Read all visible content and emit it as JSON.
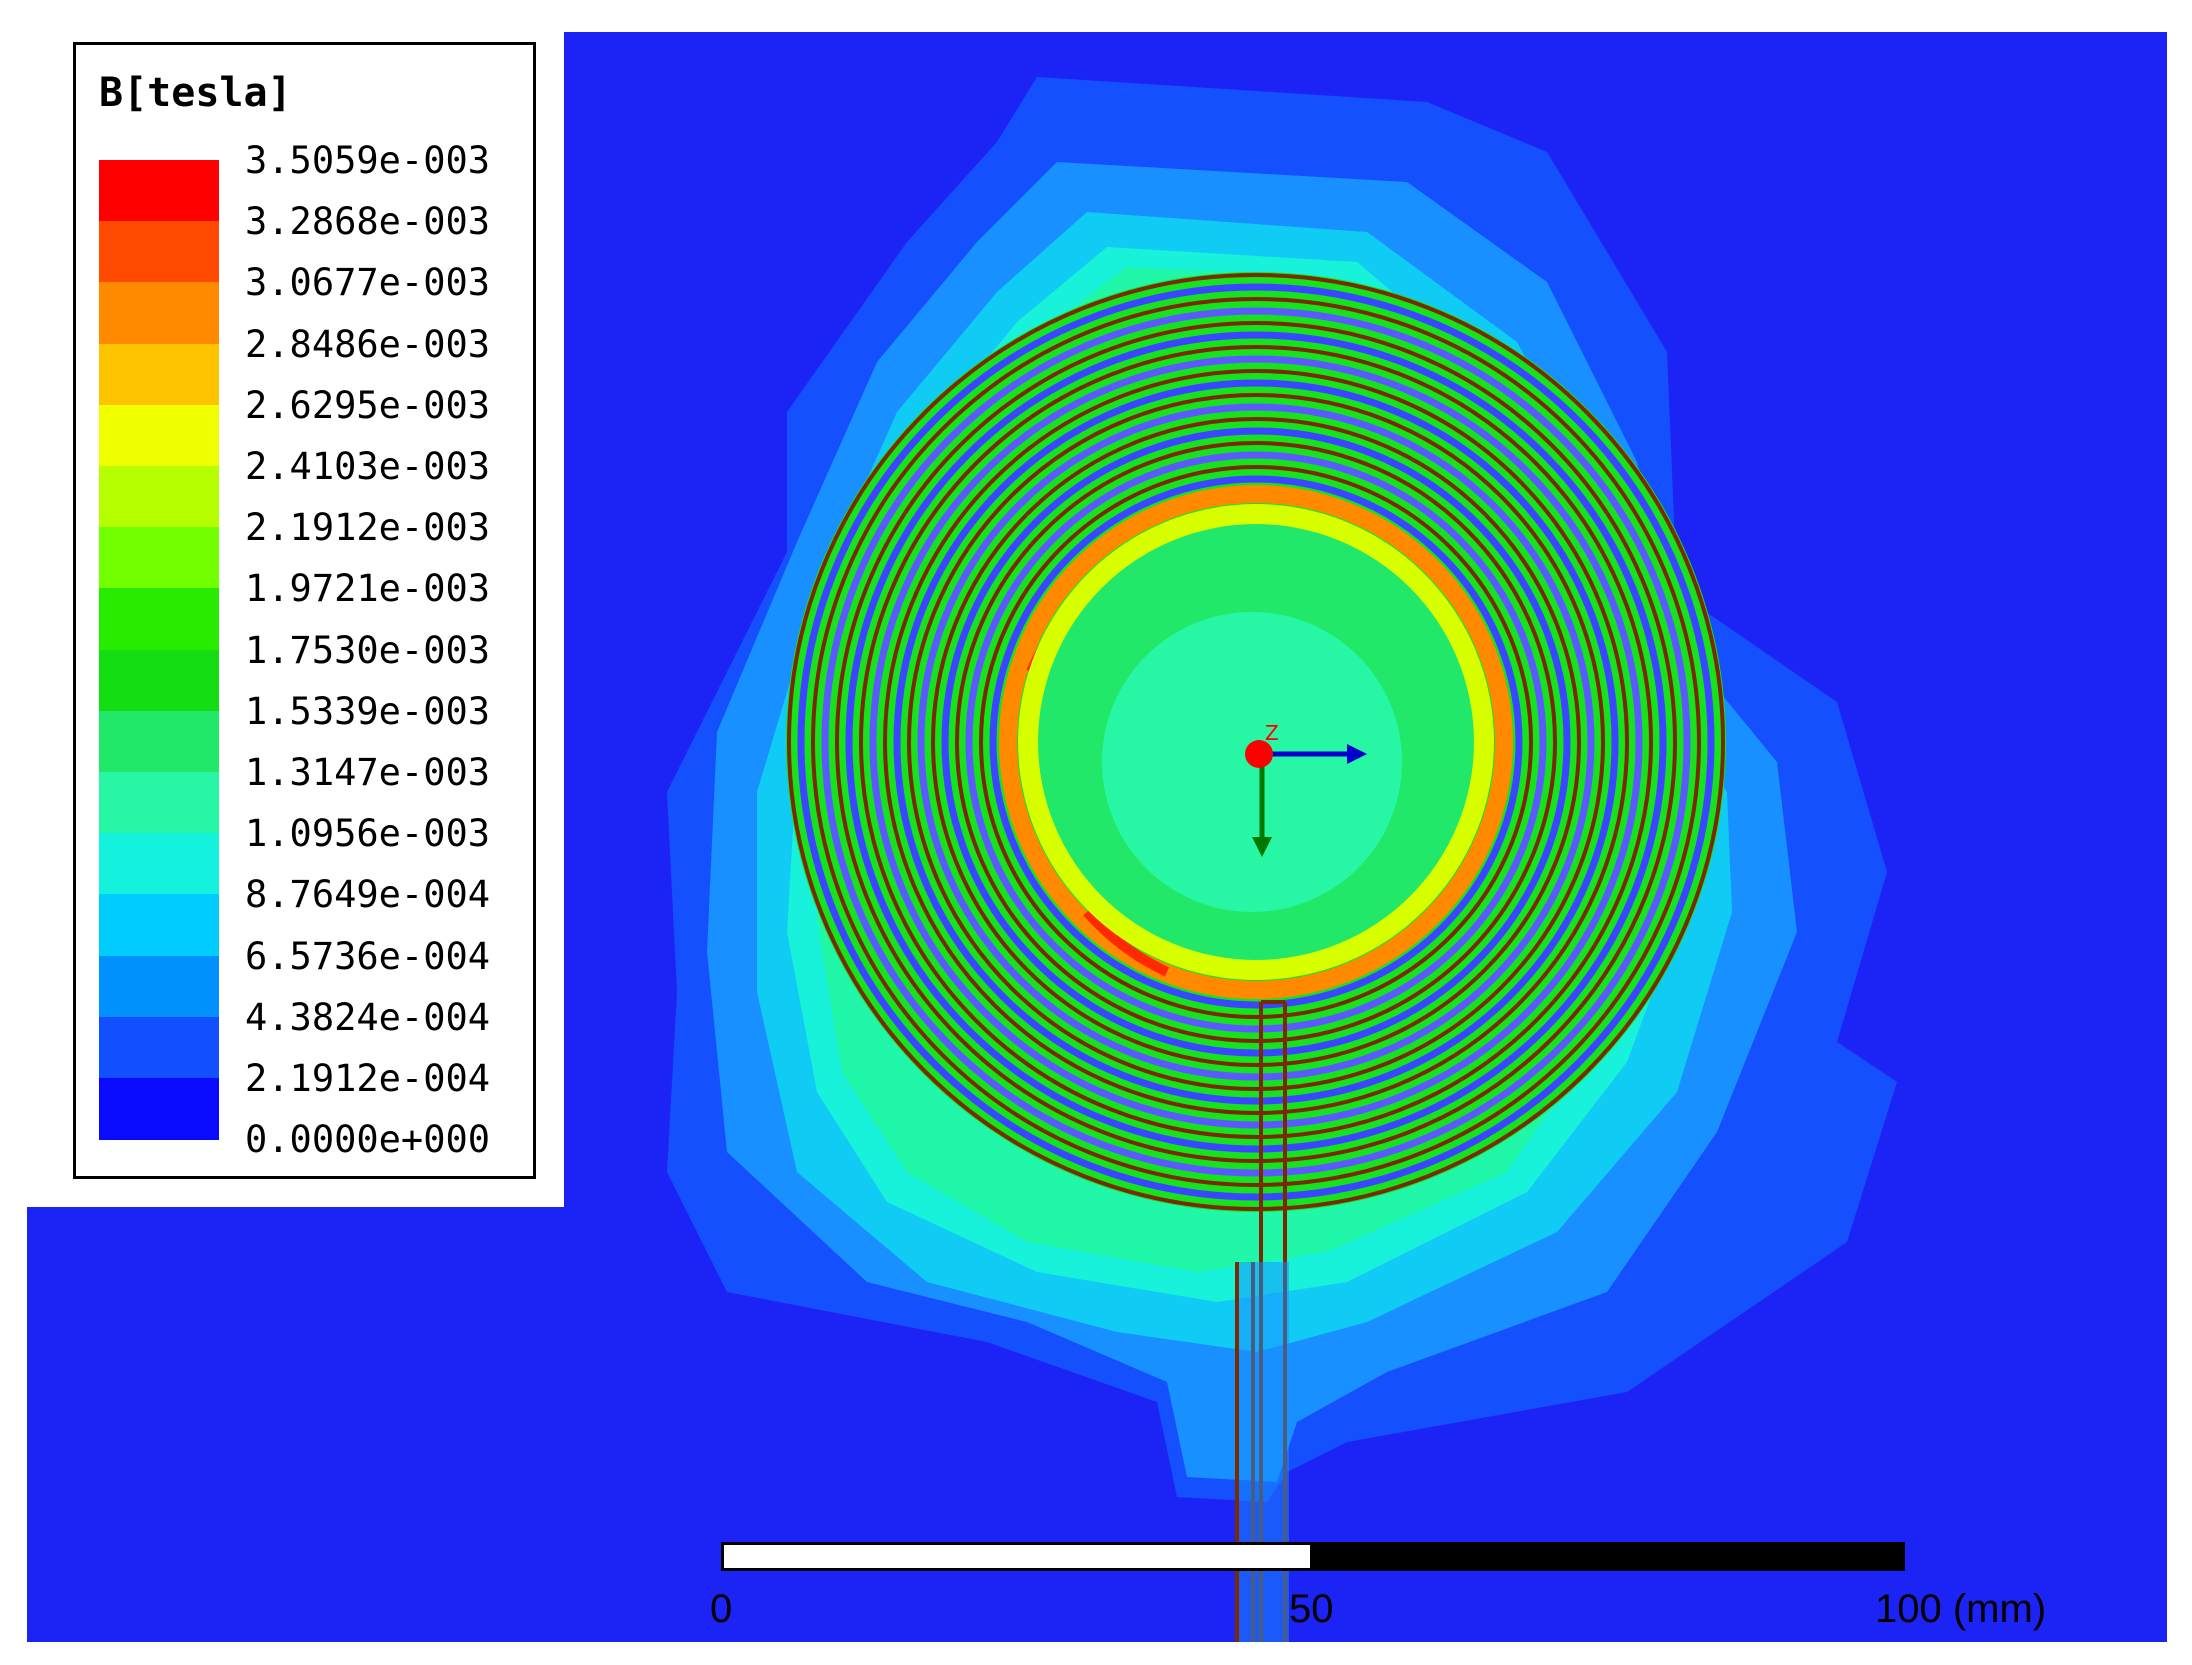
{
  "legend": {
    "title": "B[tesla]",
    "values": [
      "3.5059e-003",
      "3.2868e-003",
      "3.0677e-003",
      "2.8486e-003",
      "2.6295e-003",
      "2.4103e-003",
      "2.1912e-003",
      "1.9721e-003",
      "1.7530e-003",
      "1.5339e-003",
      "1.3147e-003",
      "1.0956e-003",
      "8.7649e-004",
      "6.5736e-004",
      "4.3824e-004",
      "2.1912e-004",
      "0.0000e+000"
    ],
    "colors": [
      "#ff0000",
      "#ff4a00",
      "#ff8a00",
      "#ffc400",
      "#f0ff00",
      "#b6ff00",
      "#72ff00",
      "#28ec00",
      "#14dd14",
      "#22e86a",
      "#27f7a4",
      "#14f2de",
      "#00ccff",
      "#0091ff",
      "#1250ff",
      "#0a0aff"
    ]
  },
  "scale_bar": {
    "labels": [
      "0",
      "50",
      "100 (mm)"
    ]
  },
  "axis_triad": {
    "label": "Z",
    "colors": {
      "x": "#0000cc",
      "y": "#007700",
      "z": "#ff0000"
    }
  },
  "field_plot": {
    "background_color": "#1c24f5",
    "coil_color": "#7a2a00",
    "description_hidden": false
  }
}
